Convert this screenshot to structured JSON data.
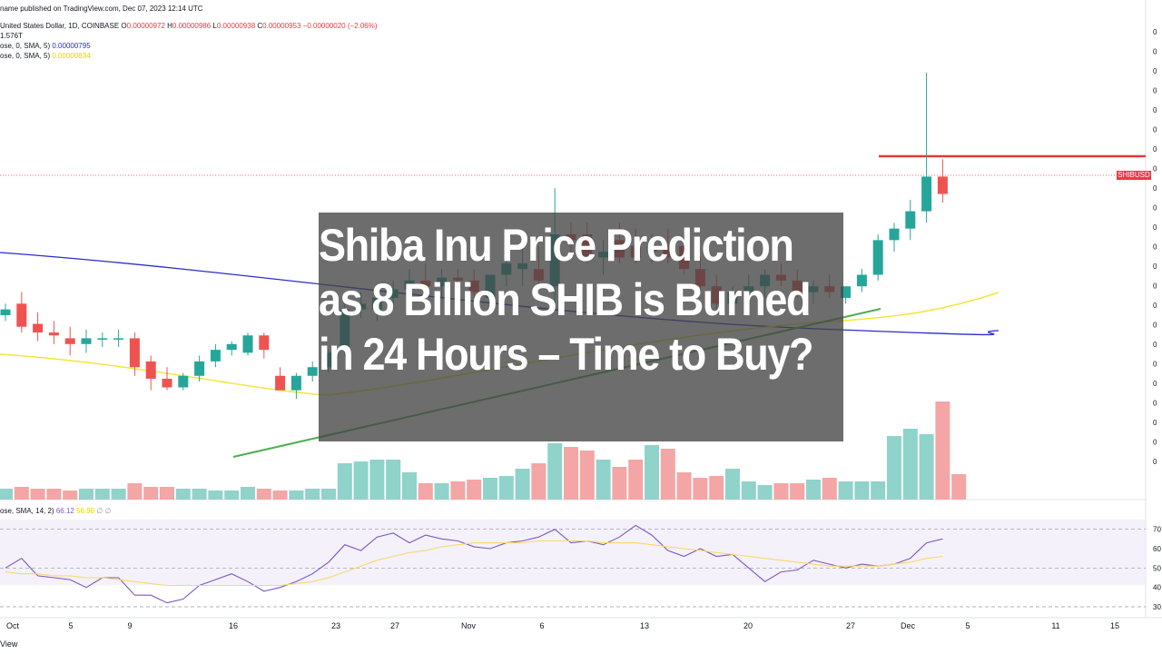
{
  "header": {
    "publish_line": "name published on TradingView.com, Dec 07, 2023 12:14 UTC",
    "symbol_line": "United States Dollar, 1D, COINBASE",
    "ohlc": {
      "o_label": "O",
      "o": "0.00000972",
      "h_label": "H",
      "h": "0.00000986",
      "l_label": "L",
      "l": "0.00000938",
      "c_label": "C",
      "c": "0.00000953",
      "change": "−0.00000020 (−2.06%)"
    },
    "volume_value": "1.576T",
    "sma1_label": "ose, 0, SMA, 5)",
    "sma1_value": "0.00000795",
    "sma2_label": "ose, 0, SMA, 5)",
    "sma2_value": "0.00000834",
    "rsi_label": "ose, SMA, 14, 2)",
    "rsi_value": "66.12",
    "rsi_ma_value": "56.90",
    "rsi_extra": "∅ ∅"
  },
  "headline": {
    "line1": "Shiba Inu Price Prediction",
    "line2": "as 8 Billion SHIB is Burned",
    "line3": "in 24 Hours – Time to Buy?"
  },
  "price_tag": "SHIBUSD",
  "footer_brand": "View",
  "colors": {
    "up": "#26a69a",
    "down": "#ef5350",
    "vol_up": "#8fd3cb",
    "vol_down": "#f3a6a5",
    "sma_blue": "#2a2ec8",
    "sma_yellow": "#f5e53b",
    "trend_green": "#4caf50",
    "resistance": "#e53935",
    "rsi_line": "#7e57c2",
    "rsi_ma": "#f8d96b"
  },
  "chart_data": [
    {
      "type": "candlestick",
      "ylim": [
        0,
        100
      ],
      "x_ticks": [
        "Oct",
        "5",
        "9",
        "16",
        "23",
        "27",
        "Nov",
        "6",
        "13",
        "20",
        "27",
        "Dec",
        "5",
        "11",
        "15"
      ],
      "y_ticks": [
        "0",
        "0",
        "0",
        "0",
        "0",
        "0",
        "0",
        "0",
        "0",
        "0",
        "0",
        "0",
        "0",
        "0",
        "0",
        "0",
        "0",
        "0",
        "0",
        "0",
        "0",
        "0",
        "0"
      ],
      "candles": [
        {
          "o": 56,
          "h": 60,
          "l": 54,
          "c": 58
        },
        {
          "o": 60,
          "h": 64,
          "l": 50,
          "c": 52
        },
        {
          "o": 53,
          "h": 57,
          "l": 47,
          "c": 50
        },
        {
          "o": 50,
          "h": 54,
          "l": 46,
          "c": 49
        },
        {
          "o": 48,
          "h": 52,
          "l": 42,
          "c": 46
        },
        {
          "o": 46,
          "h": 51,
          "l": 43,
          "c": 48
        },
        {
          "o": 48,
          "h": 50,
          "l": 45,
          "c": 48
        },
        {
          "o": 48,
          "h": 51,
          "l": 45,
          "c": 48
        },
        {
          "o": 48,
          "h": 50,
          "l": 35,
          "c": 38
        },
        {
          "o": 40,
          "h": 42,
          "l": 30,
          "c": 34
        },
        {
          "o": 34,
          "h": 38,
          "l": 30,
          "c": 31
        },
        {
          "o": 31,
          "h": 36,
          "l": 30,
          "c": 35
        },
        {
          "o": 35,
          "h": 42,
          "l": 33,
          "c": 40
        },
        {
          "o": 40,
          "h": 46,
          "l": 38,
          "c": 44
        },
        {
          "o": 44,
          "h": 47,
          "l": 42,
          "c": 46
        },
        {
          "o": 43,
          "h": 50,
          "l": 42,
          "c": 49
        },
        {
          "o": 49,
          "h": 50,
          "l": 41,
          "c": 44
        },
        {
          "o": 35,
          "h": 38,
          "l": 31,
          "c": 30
        },
        {
          "o": 30,
          "h": 36,
          "l": 27,
          "c": 35
        },
        {
          "o": 35,
          "h": 40,
          "l": 33,
          "c": 38
        },
        {
          "o": 38,
          "h": 44,
          "l": 36,
          "c": 43
        },
        {
          "o": 45,
          "h": 60,
          "l": 42,
          "c": 58
        },
        {
          "o": 58,
          "h": 64,
          "l": 55,
          "c": 60
        },
        {
          "o": 58,
          "h": 66,
          "l": 54,
          "c": 62
        },
        {
          "o": 62,
          "h": 68,
          "l": 58,
          "c": 65
        },
        {
          "o": 65,
          "h": 72,
          "l": 60,
          "c": 68
        },
        {
          "o": 68,
          "h": 74,
          "l": 62,
          "c": 66
        },
        {
          "o": 66,
          "h": 72,
          "l": 62,
          "c": 69
        },
        {
          "o": 69,
          "h": 72,
          "l": 64,
          "c": 68
        },
        {
          "o": 68,
          "h": 72,
          "l": 62,
          "c": 64
        },
        {
          "o": 62,
          "h": 70,
          "l": 58,
          "c": 70
        },
        {
          "o": 70,
          "h": 78,
          "l": 66,
          "c": 74
        },
        {
          "o": 72,
          "h": 82,
          "l": 66,
          "c": 74
        },
        {
          "o": 72,
          "h": 80,
          "l": 66,
          "c": 68
        },
        {
          "o": 66,
          "h": 100,
          "l": 60,
          "c": 84
        },
        {
          "o": 84,
          "h": 88,
          "l": 76,
          "c": 82
        },
        {
          "o": 84,
          "h": 88,
          "l": 74,
          "c": 76
        },
        {
          "o": 76,
          "h": 82,
          "l": 70,
          "c": 78
        },
        {
          "o": 82,
          "h": 88,
          "l": 74,
          "c": 76
        },
        {
          "o": 80,
          "h": 86,
          "l": 74,
          "c": 76
        },
        {
          "o": 78,
          "h": 84,
          "l": 74,
          "c": 80
        },
        {
          "o": 80,
          "h": 86,
          "l": 74,
          "c": 76
        },
        {
          "o": 80,
          "h": 84,
          "l": 70,
          "c": 72
        },
        {
          "o": 72,
          "h": 76,
          "l": 64,
          "c": 66
        },
        {
          "o": 66,
          "h": 70,
          "l": 58,
          "c": 60
        },
        {
          "o": 60,
          "h": 66,
          "l": 56,
          "c": 64
        },
        {
          "o": 64,
          "h": 70,
          "l": 60,
          "c": 66
        },
        {
          "o": 66,
          "h": 72,
          "l": 62,
          "c": 70
        },
        {
          "o": 70,
          "h": 74,
          "l": 66,
          "c": 68
        },
        {
          "o": 68,
          "h": 72,
          "l": 62,
          "c": 64
        },
        {
          "o": 64,
          "h": 68,
          "l": 60,
          "c": 66
        },
        {
          "o": 66,
          "h": 70,
          "l": 62,
          "c": 64
        },
        {
          "o": 62,
          "h": 66,
          "l": 60,
          "c": 66
        },
        {
          "o": 66,
          "h": 72,
          "l": 64,
          "c": 70
        },
        {
          "o": 70,
          "h": 84,
          "l": 68,
          "c": 82
        },
        {
          "o": 82,
          "h": 88,
          "l": 78,
          "c": 86
        },
        {
          "o": 86,
          "h": 96,
          "l": 82,
          "c": 92
        },
        {
          "o": 92,
          "h": 140,
          "l": 88,
          "c": 104
        },
        {
          "o": 104,
          "h": 110,
          "l": 95,
          "c": 98
        }
      ]
    },
    {
      "type": "line",
      "title": "RSI",
      "ylim": [
        30,
        75
      ],
      "y_ticks": [
        "70",
        "60",
        "50",
        "40",
        "30"
      ],
      "rsi": [
        50,
        55,
        46,
        45,
        44,
        40,
        45,
        45,
        36,
        36,
        32,
        34,
        41,
        44,
        47,
        43,
        38,
        40,
        43,
        47,
        53,
        62,
        59,
        66,
        68,
        63,
        67,
        65,
        64,
        61,
        60,
        63,
        64,
        66,
        70,
        63,
        64,
        62,
        66,
        72,
        67,
        59,
        56,
        60,
        56,
        57,
        50,
        43,
        48,
        49,
        54,
        52,
        50,
        52,
        51,
        52,
        55,
        63,
        65,
        70,
        66
      ],
      "rsi_ma": [
        48,
        47,
        47,
        46,
        46,
        45,
        45,
        44,
        43,
        42,
        41,
        41,
        41,
        41,
        41,
        41,
        41,
        41,
        42,
        43,
        45,
        48,
        51,
        54,
        56,
        58,
        59,
        61,
        62,
        63,
        63,
        63,
        63,
        64,
        64,
        64,
        64,
        63,
        63,
        63,
        62,
        61,
        60,
        59,
        58,
        57,
        56,
        55,
        54,
        53,
        52,
        51,
        51,
        51,
        51,
        52,
        53,
        55,
        56,
        57,
        57
      ]
    }
  ]
}
